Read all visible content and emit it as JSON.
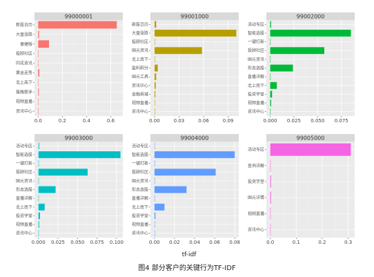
{
  "figure": {
    "xlabel": "tf-idf",
    "caption": "图4  部分客户的关键行为TF-IDF"
  },
  "chart_data": [
    {
      "type": "bar",
      "title": "99000001",
      "color": "#F8766D",
      "categories": [
        "新股日历",
        "大盘涨跌",
        "便捷版",
        "投顾社区",
        "同花资讯",
        "黄金走势",
        "北上南下",
        "策略帮手",
        "视频直播",
        "资讯中心"
      ],
      "values": [
        0.65,
        0.008,
        0.09,
        0.0,
        0.0,
        0.01,
        0.0,
        0.006,
        0.0,
        0.0
      ],
      "xlim": [
        -0.03,
        0.7
      ],
      "xticks": [
        "0.0",
        "0.2",
        "0.4",
        "0.6"
      ],
      "xtick_values": [
        0,
        0.2,
        0.4,
        0.6
      ]
    },
    {
      "type": "bar",
      "title": "99001000",
      "color": "#B79F00",
      "categories": [
        "新股日历",
        "大盘涨跌",
        "投顾社区",
        "国元资讯",
        "北上南下",
        "盈利积分",
        "国元工具",
        "资讯中心",
        "金融商城",
        "视频直播",
        "资讯中心"
      ],
      "values": [
        0.002,
        0.1,
        0.0,
        0.058,
        0.0,
        0.004,
        0.002,
        0.0015,
        0.001,
        0.0,
        0.0
      ],
      "xlim": [
        -0.005,
        0.103
      ],
      "xticks": [
        "0.00",
        "0.03",
        "0.06",
        "0.09"
      ],
      "xtick_values": [
        0,
        0.03,
        0.06,
        0.09
      ]
    },
    {
      "type": "bar",
      "title": "99002000",
      "color": "#00BA38",
      "categories": [
        "活动专区",
        "智能选股",
        "一键打新",
        "投顾社区",
        "国元资讯",
        "形态选股",
        "直播详解",
        "北上南下",
        "投资学堂",
        "视频直播",
        "资讯中心"
      ],
      "values": [
        0.001,
        0.085,
        0.0,
        0.057,
        0.0,
        0.024,
        0.0,
        0.007,
        0.002,
        0.001,
        0.0
      ],
      "xlim": [
        -0.004,
        0.089
      ],
      "xticks": [
        "0.000",
        "0.025",
        "0.050",
        "0.075"
      ],
      "xtick_values": [
        0,
        0.025,
        0.05,
        0.075
      ]
    },
    {
      "type": "bar",
      "title": "99003000",
      "color": "#00BFC4",
      "categories": [
        "活动专区",
        "智能选股",
        "一键打新",
        "投顾社区",
        "国元资讯",
        "形态选股",
        "直播详解",
        "北上南下",
        "投资学堂",
        "视频直播",
        "资讯中心"
      ],
      "values": [
        0.001,
        0.105,
        0.0,
        0.063,
        0.0,
        0.022,
        0.0,
        0.008,
        0.002,
        0.001,
        0.0
      ],
      "xlim": [
        -0.005,
        0.108
      ],
      "xticks": [
        "0.000",
        "0.025",
        "0.050",
        "0.075",
        "0.100"
      ],
      "xtick_values": [
        0,
        0.025,
        0.05,
        0.075,
        0.1
      ]
    },
    {
      "type": "bar",
      "title": "99004000",
      "color": "#619CFF",
      "categories": [
        "活动专区",
        "智能选股",
        "一键打新",
        "投顾社区",
        "国元资讯",
        "形态选股",
        "直播详解",
        "北上南下",
        "投资学堂",
        "视频直播",
        "资讯中心"
      ],
      "values": [
        0.0,
        0.08,
        0.0,
        0.061,
        0.0,
        0.032,
        0.0,
        0.01,
        0.001,
        0.0,
        0.0
      ],
      "xlim": [
        -0.004,
        0.084
      ],
      "xticks": [
        "0.00",
        "0.02",
        "0.04",
        "0.06",
        "0.08"
      ],
      "xtick_values": [
        0,
        0.02,
        0.04,
        0.06,
        0.08
      ]
    },
    {
      "type": "bar",
      "title": "99005000",
      "color": "#F564E3",
      "categories": [
        "活动专区",
        "查询详解",
        "投资学堂",
        "国元详情",
        "视频直播",
        "资讯中心"
      ],
      "values": [
        0.31,
        0.0,
        0.003,
        0.003,
        0.0,
        0.0
      ],
      "xlim": [
        -0.015,
        0.325
      ],
      "xticks": [
        "0.0",
        "0.1",
        "0.2",
        "0.3"
      ],
      "xtick_values": [
        0,
        0.1,
        0.2,
        0.3
      ]
    }
  ]
}
